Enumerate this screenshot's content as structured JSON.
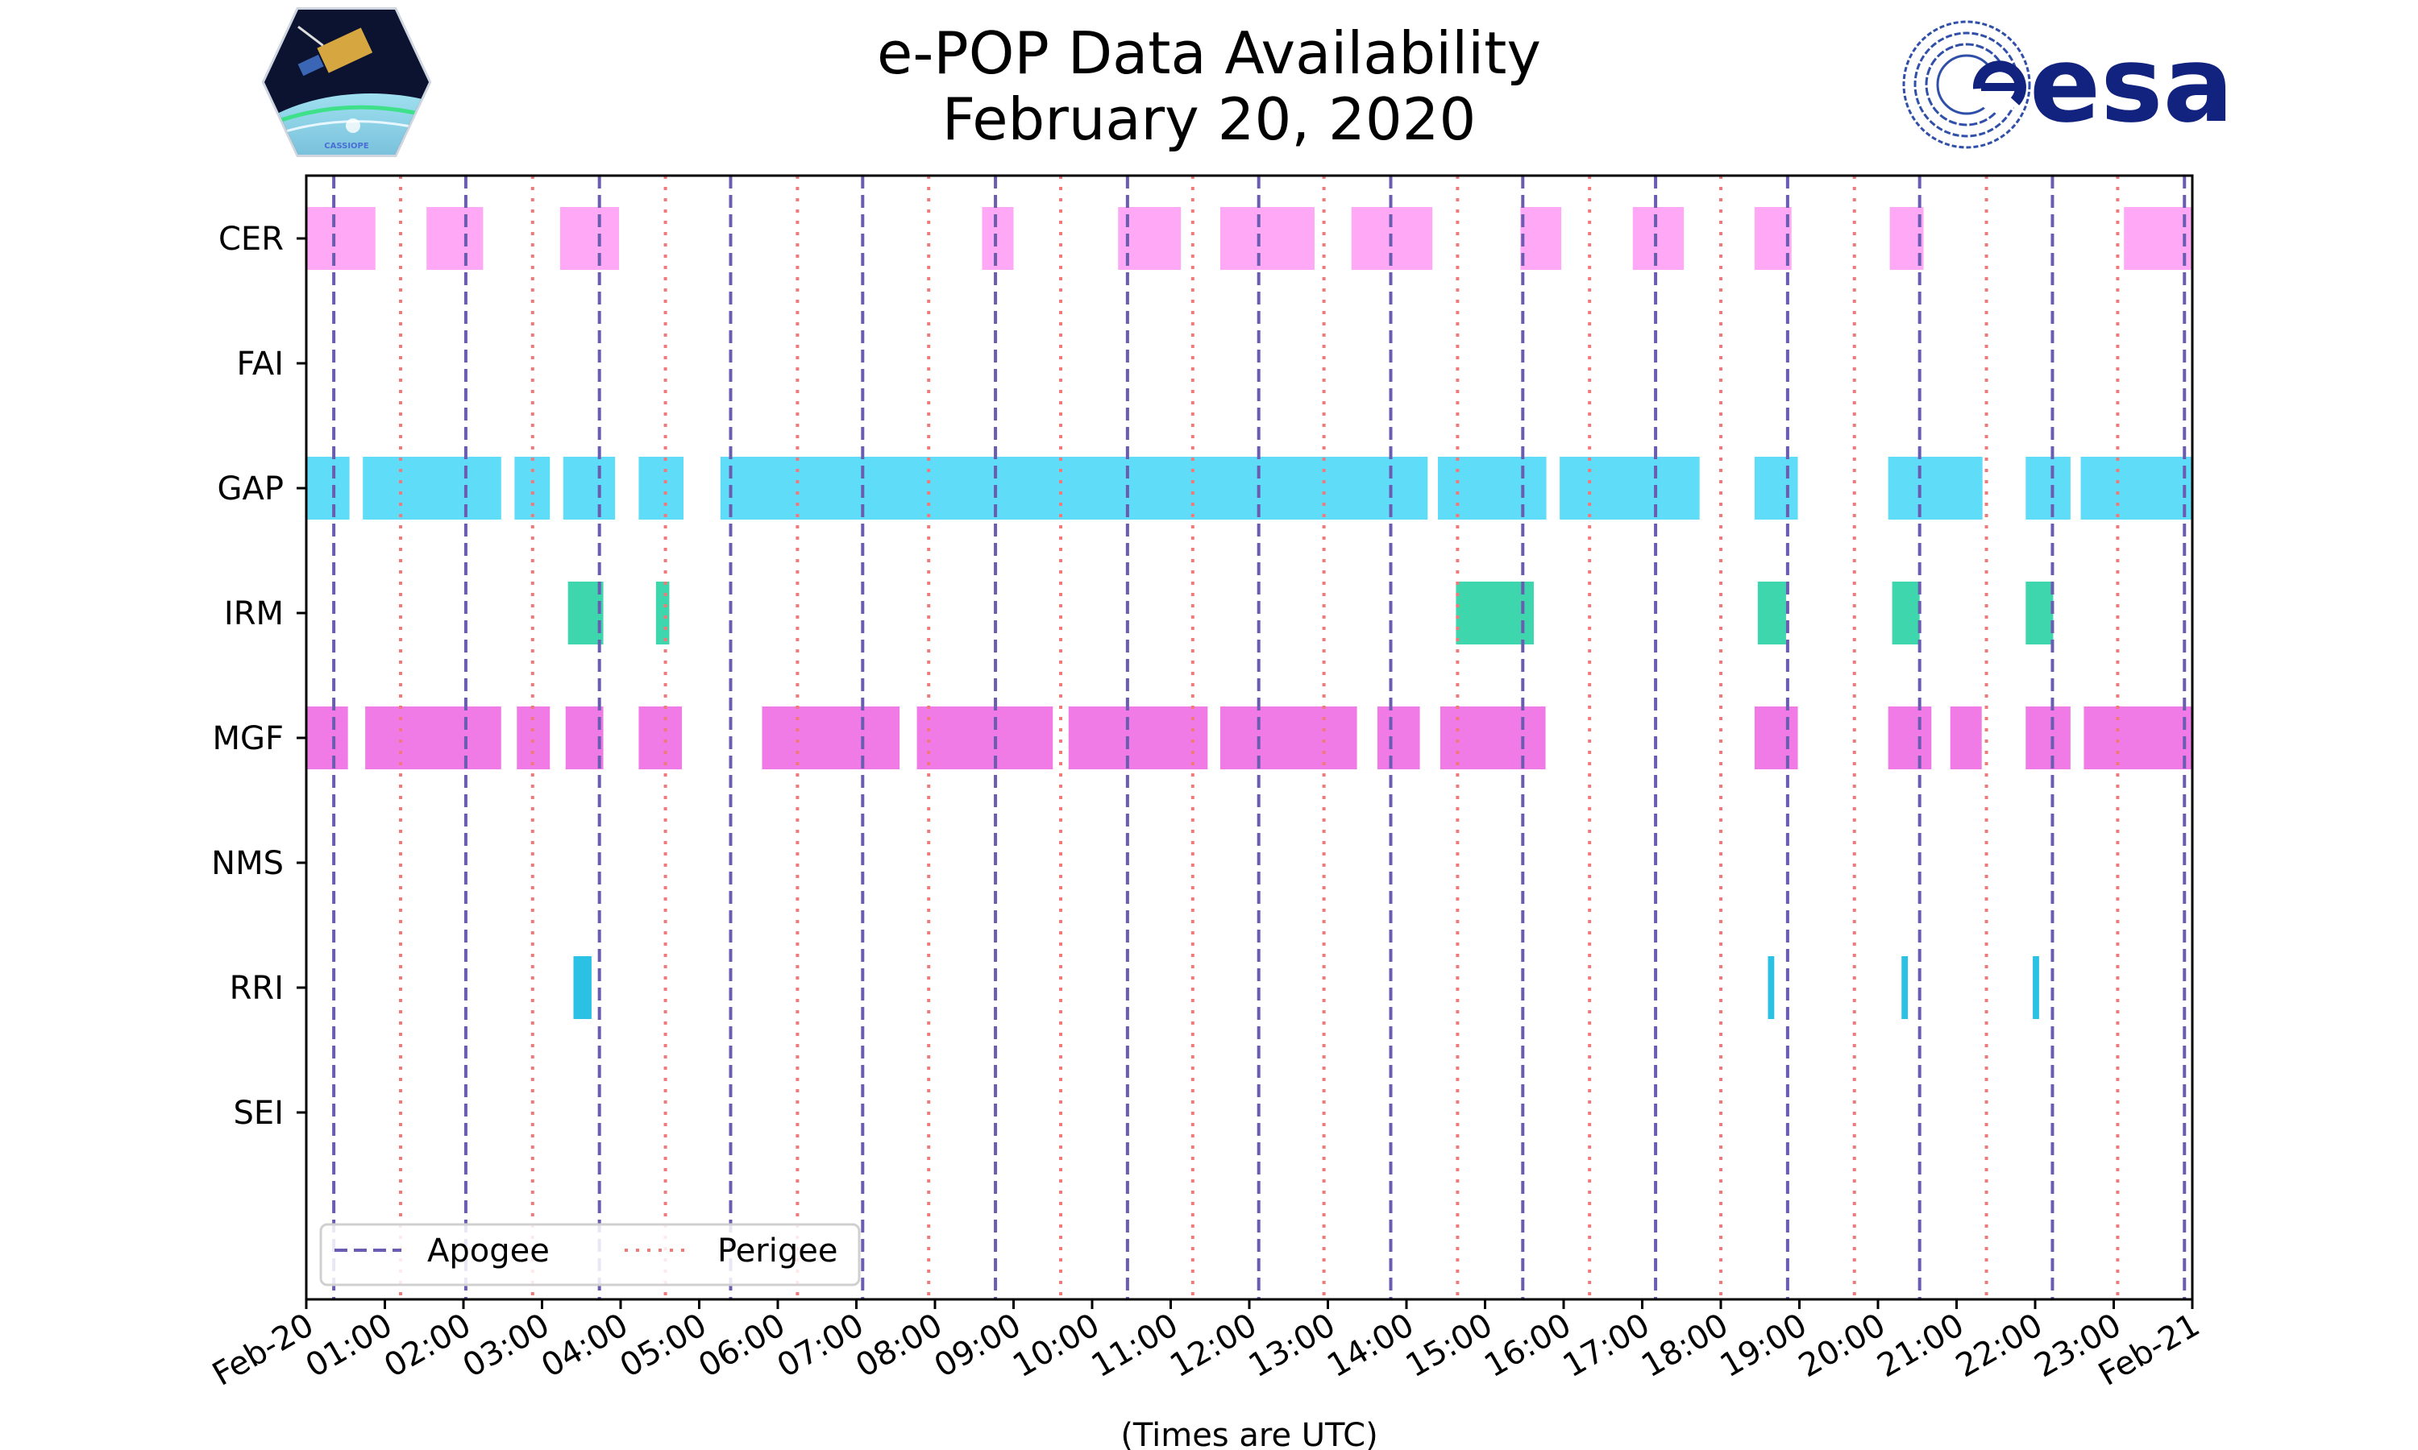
{
  "chart_data": {
    "type": "timeline",
    "title": "e-POP Data Availability",
    "subtitle": "February 20, 2020",
    "xlabel": "(Times are UTC)",
    "x_unit": "hours",
    "xlim": [
      0,
      24
    ],
    "x_ticks": [
      "Feb-20",
      "01:00",
      "02:00",
      "03:00",
      "04:00",
      "05:00",
      "06:00",
      "07:00",
      "08:00",
      "09:00",
      "10:00",
      "11:00",
      "12:00",
      "13:00",
      "14:00",
      "15:00",
      "16:00",
      "17:00",
      "18:00",
      "19:00",
      "20:00",
      "21:00",
      "22:00",
      "23:00",
      "Feb-21"
    ],
    "instruments": [
      "CER",
      "FAI",
      "GAP",
      "IRM",
      "MGF",
      "NMS",
      "RRI",
      "SEI"
    ],
    "colors": {
      "CER": "#ffa8f5",
      "GAP": "#5fdcf7",
      "IRM": "#3dd6ad",
      "MGF": "#f07be6",
      "RRI": "#2bc1e4",
      "apogee": "#6a5cb0",
      "perigee": "#f07a7a"
    },
    "series": [
      {
        "name": "CER",
        "intervals": [
          [
            0.0,
            0.88
          ],
          [
            1.53,
            2.25
          ],
          [
            3.23,
            3.98
          ],
          [
            8.6,
            9.0
          ],
          [
            10.33,
            11.13
          ],
          [
            11.63,
            12.83
          ],
          [
            13.3,
            14.33
          ],
          [
            15.45,
            15.97
          ],
          [
            16.88,
            17.53
          ],
          [
            18.43,
            18.9
          ],
          [
            20.15,
            20.58
          ],
          [
            23.13,
            24.0
          ]
        ]
      },
      {
        "name": "FAI",
        "intervals": []
      },
      {
        "name": "GAP",
        "intervals": [
          [
            0.0,
            0.55
          ],
          [
            0.72,
            2.48
          ],
          [
            2.65,
            3.1
          ],
          [
            3.27,
            3.93
          ],
          [
            4.23,
            4.8
          ],
          [
            5.27,
            14.27
          ],
          [
            14.4,
            15.78
          ],
          [
            15.95,
            17.73
          ],
          [
            18.43,
            18.98
          ],
          [
            20.13,
            21.33
          ],
          [
            21.88,
            22.45
          ],
          [
            22.58,
            24.0
          ]
        ]
      },
      {
        "name": "IRM",
        "intervals": [
          [
            3.33,
            3.78
          ],
          [
            4.45,
            4.62
          ],
          [
            14.63,
            15.62
          ],
          [
            18.47,
            18.83
          ],
          [
            20.18,
            20.53
          ],
          [
            21.88,
            22.23
          ]
        ]
      },
      {
        "name": "MGF",
        "intervals": [
          [
            0.0,
            0.53
          ],
          [
            0.75,
            2.48
          ],
          [
            2.68,
            3.1
          ],
          [
            3.3,
            3.78
          ],
          [
            4.23,
            4.78
          ],
          [
            5.8,
            7.55
          ],
          [
            7.77,
            9.5
          ],
          [
            9.7,
            11.47
          ],
          [
            11.63,
            13.37
          ],
          [
            13.63,
            14.17
          ],
          [
            14.43,
            15.77
          ],
          [
            18.43,
            18.98
          ],
          [
            20.13,
            20.68
          ],
          [
            20.92,
            21.32
          ],
          [
            21.88,
            22.45
          ],
          [
            22.62,
            24.0
          ]
        ]
      },
      {
        "name": "NMS",
        "intervals": []
      },
      {
        "name": "RRI",
        "intervals": [
          [
            3.4,
            3.63
          ],
          [
            18.6,
            18.68
          ],
          [
            20.3,
            20.38
          ],
          [
            21.97,
            22.05
          ]
        ]
      },
      {
        "name": "SEI",
        "intervals": []
      }
    ],
    "apogee_times": [
      0.35,
      2.03,
      3.73,
      5.4,
      7.08,
      8.77,
      10.45,
      12.12,
      13.8,
      15.48,
      17.17,
      18.85,
      20.53,
      22.22,
      23.9
    ],
    "perigee_times": [
      1.2,
      2.88,
      4.57,
      6.25,
      7.92,
      9.6,
      11.28,
      12.95,
      14.65,
      16.33,
      18.0,
      19.7,
      21.38,
      23.05
    ],
    "legend": {
      "location": "lower-left",
      "apogee_label": "Apogee",
      "perigee_label": "Perigee"
    }
  },
  "logos": {
    "left": {
      "name": "CASSIOPE",
      "label": "CASSIOPE"
    },
    "right": {
      "name": "esa",
      "label": "esa"
    }
  }
}
